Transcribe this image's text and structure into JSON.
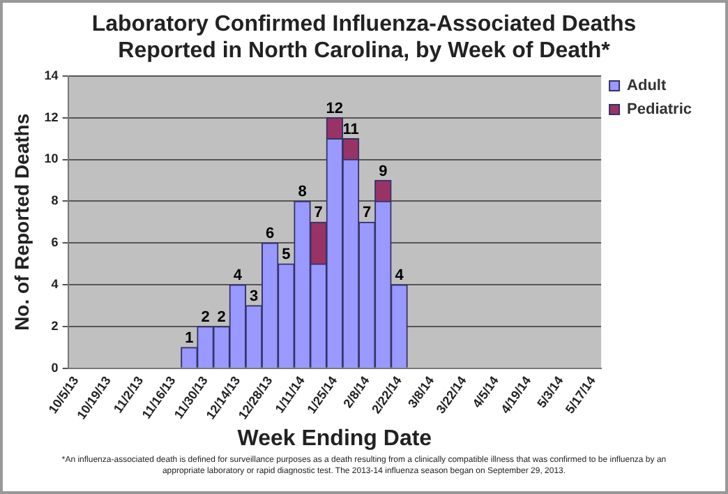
{
  "chart_data": {
    "type": "bar",
    "title": "Laboratory Confirmed Influenza-Associated Deaths Reported in North Carolina, by Week of Death*",
    "xlabel": "Week Ending Date",
    "ylabel": "No. of Reported Deaths",
    "categories": [
      "10/5/13",
      null,
      "10/19/13",
      null,
      "11/2/13",
      null,
      "11/16/13",
      null,
      "11/30/13",
      null,
      "12/14/13",
      null,
      "12/28/13",
      null,
      "1/11/14",
      null,
      "1/25/14",
      null,
      "2/8/14",
      null,
      "2/22/14",
      null,
      "3/8/14",
      null,
      "3/22/14",
      null,
      "4/5/14",
      null,
      "4/19/14",
      null,
      "5/3/14",
      null,
      "5/17/14"
    ],
    "series": [
      {
        "name": "Adult",
        "color": "#9999ff",
        "values": [
          null,
          null,
          null,
          null,
          null,
          null,
          null,
          1,
          2,
          2,
          4,
          3,
          6,
          5,
          8,
          5,
          11,
          10,
          7,
          8,
          4,
          null,
          null,
          null,
          null,
          null,
          null,
          null,
          null,
          null,
          null,
          null,
          null
        ]
      },
      {
        "name": "Pediatric",
        "color": "#993366",
        "values": [
          null,
          null,
          null,
          null,
          null,
          null,
          null,
          null,
          null,
          null,
          null,
          null,
          null,
          null,
          null,
          2,
          1,
          1,
          null,
          1,
          null,
          null,
          null,
          null,
          null,
          null,
          null,
          null,
          null,
          null,
          null,
          null,
          null
        ]
      }
    ],
    "stacked": true,
    "totals": [
      null,
      null,
      null,
      null,
      null,
      null,
      null,
      "1",
      "2",
      "2",
      "4",
      "3",
      "6",
      "5",
      "8",
      "7",
      "12",
      "11",
      "7",
      "9",
      "4",
      null,
      null,
      null,
      null,
      null,
      null,
      null,
      null,
      null,
      null,
      null,
      null
    ],
    "ylim": [
      0,
      14
    ],
    "yticks": [
      0,
      2,
      4,
      6,
      8,
      10,
      12,
      14
    ],
    "grid": "y",
    "legend": "top right",
    "annotations": [
      "*An influenza-associated death is defined for surveillance purposes as a death resulting from a clinically compatible illness that was confirmed to be influenza by an appropriate laboratory or rapid diagnostic test. The 2013-14 influenza season began on September 29, 2013."
    ]
  }
}
